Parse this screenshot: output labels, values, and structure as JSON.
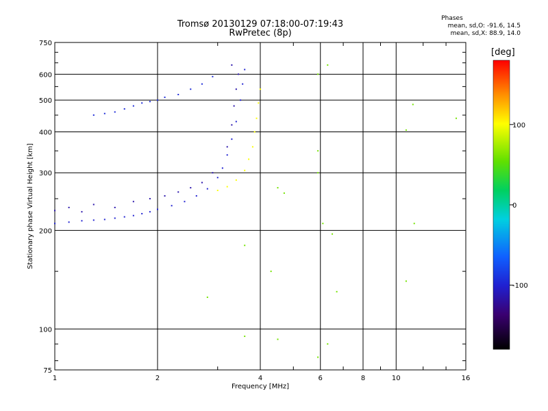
{
  "title_line1": "Tromsø 20130129 07:18:00-07:19:43",
  "title_line2": "RwPretec (8p)",
  "stats": {
    "header": "Phases",
    "line_o": "mean, sd,O: -91.6, 14.5",
    "line_x": "mean, sd,X:  88.9, 14.0"
  },
  "colorbar": {
    "unit": "[deg]",
    "range": [
      -180,
      180
    ],
    "ticks": [
      "100",
      "0",
      "-100"
    ],
    "tick_values": [
      100,
      0,
      -100
    ]
  },
  "chart_data": {
    "type": "scatter",
    "xlabel": "Frequency [MHz]",
    "ylabel": "Stationary phase Virtual Height [km]",
    "x_scale": "log",
    "y_scale": "log",
    "xlim": [
      1,
      16
    ],
    "ylim": [
      75,
      750
    ],
    "x_ticks": [
      1,
      2,
      4,
      6,
      8,
      10,
      16
    ],
    "x_tick_labels": [
      "1",
      "2",
      "4",
      "6",
      "8",
      "10",
      "16"
    ],
    "y_ticks": [
      75,
      100,
      200,
      300,
      400,
      500,
      600,
      750
    ],
    "y_tick_labels": [
      "75",
      "100",
      "200",
      "300",
      "400",
      "500",
      "600",
      "750"
    ],
    "grid": true,
    "series": [
      {
        "trace": "o-mode-F-layer",
        "phase": -100,
        "points": [
          [
            1.0,
            210
          ],
          [
            1.1,
            212
          ],
          [
            1.2,
            214
          ],
          [
            1.3,
            215
          ],
          [
            1.4,
            216
          ],
          [
            1.5,
            218
          ],
          [
            1.6,
            220
          ],
          [
            1.7,
            222
          ],
          [
            1.8,
            225
          ],
          [
            1.9,
            228
          ],
          [
            2.0,
            232
          ],
          [
            2.2,
            238
          ],
          [
            2.4,
            245
          ],
          [
            2.6,
            255
          ],
          [
            2.8,
            268
          ],
          [
            3.0,
            290
          ],
          [
            3.1,
            310
          ],
          [
            3.2,
            340
          ],
          [
            3.3,
            380
          ],
          [
            3.4,
            430
          ],
          [
            3.5,
            500
          ],
          [
            3.55,
            560
          ],
          [
            3.6,
            620
          ]
        ]
      },
      {
        "trace": "o-mode-spread",
        "phase": -115,
        "points": [
          [
            1.0,
            230
          ],
          [
            1.1,
            235
          ],
          [
            1.2,
            228
          ],
          [
            1.3,
            240
          ],
          [
            1.5,
            235
          ],
          [
            1.7,
            245
          ],
          [
            1.9,
            250
          ],
          [
            2.1,
            255
          ],
          [
            2.3,
            262
          ],
          [
            2.5,
            270
          ],
          [
            2.7,
            280
          ],
          [
            2.9,
            300
          ],
          [
            3.2,
            360
          ],
          [
            3.3,
            420
          ],
          [
            3.35,
            480
          ],
          [
            3.4,
            540
          ],
          [
            3.45,
            600
          ],
          [
            3.3,
            640
          ]
        ]
      },
      {
        "trace": "o-mode-upper",
        "phase": -95,
        "points": [
          [
            1.3,
            450
          ],
          [
            1.4,
            455
          ],
          [
            1.5,
            460
          ],
          [
            1.6,
            470
          ],
          [
            1.7,
            480
          ],
          [
            1.8,
            490
          ],
          [
            1.9,
            495
          ],
          [
            2.0,
            500
          ],
          [
            2.1,
            510
          ],
          [
            2.3,
            520
          ],
          [
            2.5,
            540
          ],
          [
            2.7,
            560
          ],
          [
            2.9,
            590
          ]
        ]
      },
      {
        "trace": "x-mode",
        "phase": 100,
        "points": [
          [
            3.0,
            265
          ],
          [
            3.2,
            272
          ],
          [
            3.4,
            285
          ],
          [
            3.6,
            305
          ],
          [
            3.7,
            330
          ],
          [
            3.8,
            360
          ],
          [
            3.85,
            400
          ],
          [
            3.9,
            440
          ],
          [
            3.95,
            490
          ],
          [
            4.0,
            540
          ]
        ]
      },
      {
        "trace": "scattered",
        "phase": 60,
        "points": [
          [
            5.9,
            600
          ],
          [
            6.3,
            640
          ],
          [
            5.9,
            350
          ],
          [
            5.9,
            300
          ],
          [
            6.1,
            210
          ],
          [
            6.5,
            195
          ],
          [
            4.5,
            270
          ],
          [
            4.7,
            260
          ],
          [
            10.7,
            405
          ],
          [
            11.2,
            485
          ],
          [
            11.3,
            210
          ],
          [
            10.7,
            140
          ],
          [
            6.3,
            90
          ],
          [
            5.9,
            82
          ],
          [
            3.6,
            95
          ],
          [
            4.5,
            93
          ],
          [
            2.8,
            125
          ],
          [
            3.6,
            180
          ],
          [
            4.3,
            150
          ],
          [
            6.7,
            130
          ],
          [
            15,
            440
          ]
        ]
      }
    ]
  }
}
